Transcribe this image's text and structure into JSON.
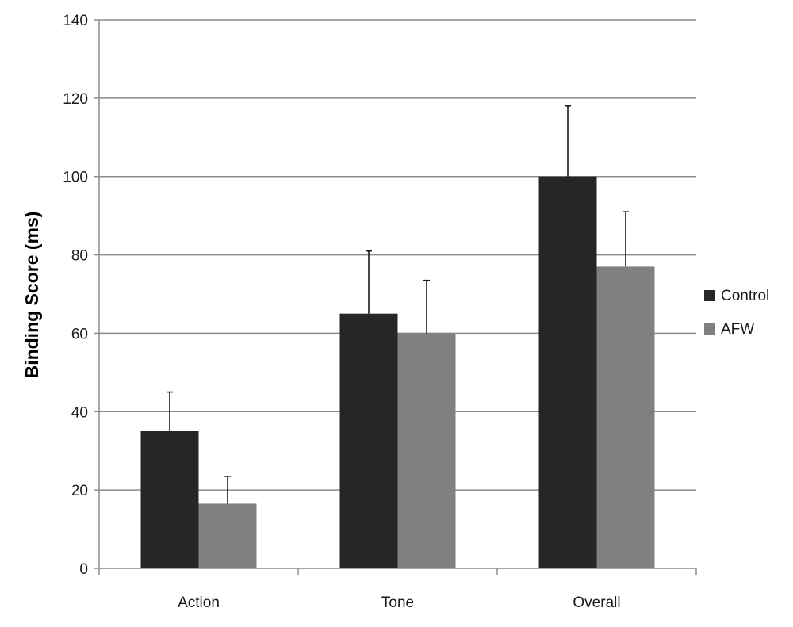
{
  "chart_data": {
    "type": "bar",
    "title": "",
    "xlabel": "",
    "ylabel": "Binding Score (ms)",
    "ylim": [
      0,
      140
    ],
    "yticks": [
      0,
      20,
      40,
      60,
      80,
      100,
      120,
      140
    ],
    "grid": true,
    "legend_position": "right",
    "categories": [
      "Action",
      "Tone",
      "Overall"
    ],
    "series": [
      {
        "name": "Control",
        "color": "#262626",
        "values": [
          35,
          65,
          100
        ],
        "error_upper": [
          10,
          16,
          18
        ]
      },
      {
        "name": "AFW",
        "color": "#808080",
        "values": [
          16.5,
          60,
          77
        ],
        "error_upper": [
          7,
          13.5,
          14
        ]
      }
    ]
  }
}
